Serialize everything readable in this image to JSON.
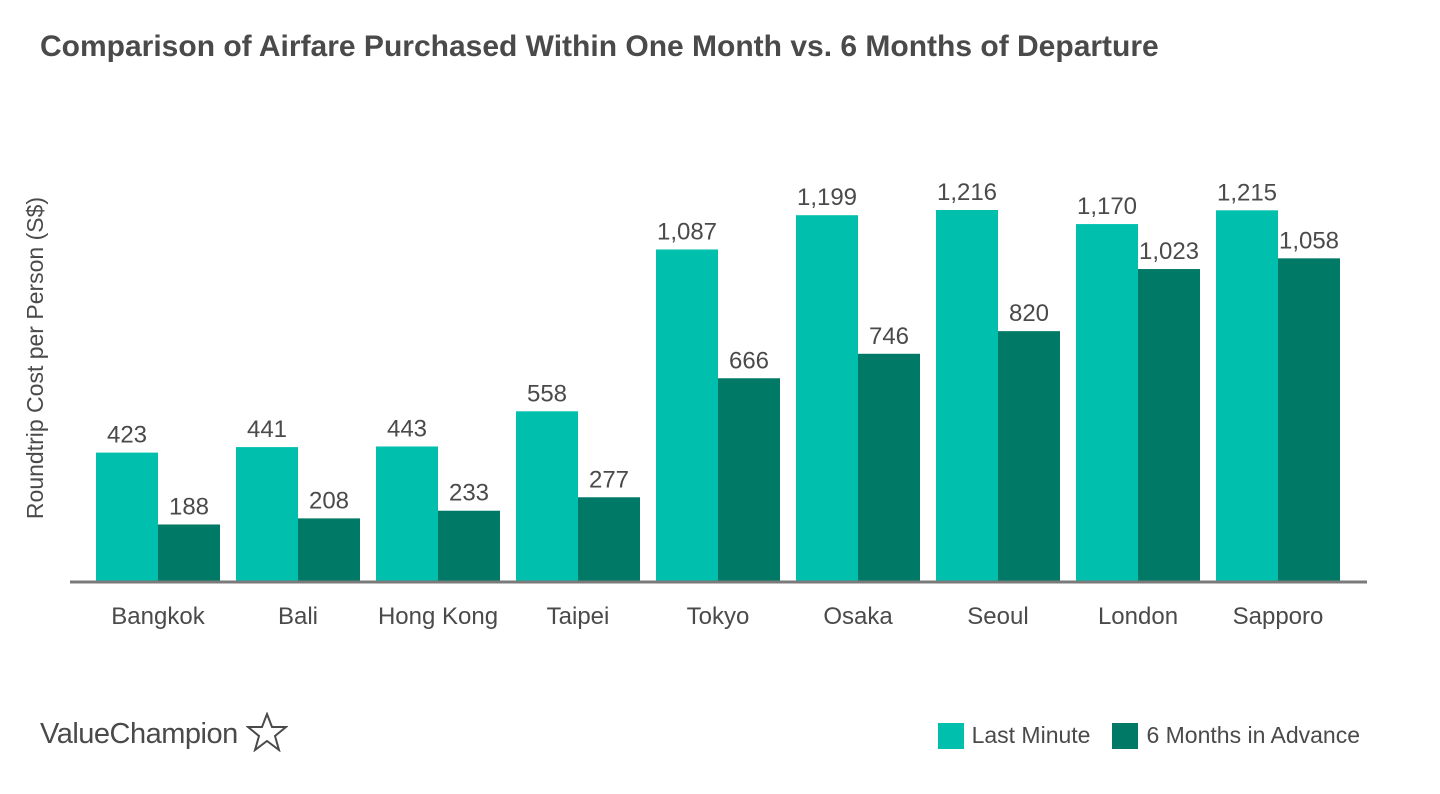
{
  "chart_data": {
    "type": "bar",
    "title": "Comparison of Airfare Purchased Within One Month vs. 6 Months of Departure",
    "ylabel": "Roundtrip Cost per Person (S$)",
    "xlabel": "",
    "ylim": [
      0,
      1216
    ],
    "grid": false,
    "legend_position": "bottom-right",
    "categories": [
      "Bangkok",
      "Bali",
      "Hong Kong",
      "Taipei",
      "Tokyo",
      "Osaka",
      "Seoul",
      "London",
      "Sapporo"
    ],
    "series": [
      {
        "name": "Last Minute",
        "color": "#00c0ad",
        "values": [
          423,
          441,
          443,
          558,
          1087,
          1199,
          1216,
          1170,
          1215
        ],
        "labels": [
          "423",
          "441",
          "443",
          "558",
          "1,087",
          "1,199",
          "1,216",
          "1,170",
          "1,215"
        ]
      },
      {
        "name": "6 Months in Advance",
        "color": "#007a66",
        "values": [
          188,
          208,
          233,
          277,
          666,
          746,
          820,
          1023,
          1058
        ],
        "labels": [
          "188",
          "208",
          "233",
          "277",
          "666",
          "746",
          "820",
          "1,023",
          "1,058"
        ]
      }
    ]
  },
  "brand": {
    "name": "ValueChampion",
    "icon": "star-outline-icon"
  },
  "colors": {
    "text": "#4a4a4a",
    "axis": "#7a7a7a"
  }
}
